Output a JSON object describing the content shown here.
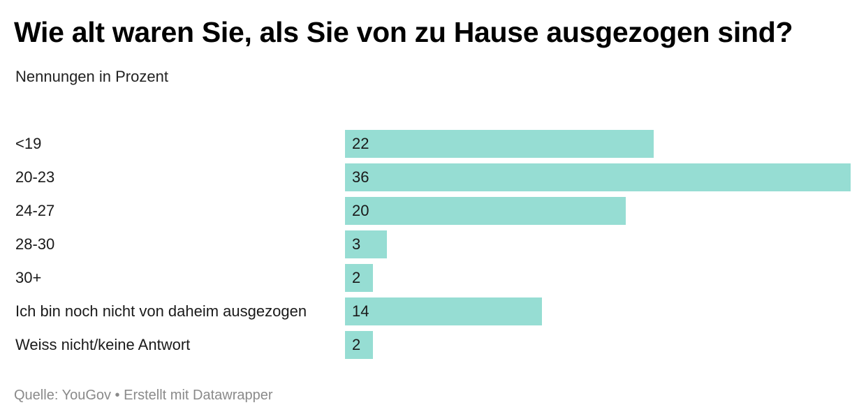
{
  "chart_data": {
    "type": "bar",
    "orientation": "horizontal",
    "title": "Wie alt waren Sie, als Sie von zu Hause ausgezogen sind?",
    "subtitle": "Nennungen in Prozent",
    "categories": [
      "<19",
      "20-23",
      "24-27",
      "28-30",
      "30+",
      "Ich bin noch nicht von daheim ausgezogen",
      "Weiss nicht/keine Antwort"
    ],
    "values": [
      22,
      36,
      20,
      3,
      2,
      14,
      2
    ],
    "xlim": [
      0,
      36
    ],
    "grid": false,
    "bar_color": "#96ddd3",
    "source": "Quelle: YouGov • Erstellt mit Datawrapper"
  }
}
